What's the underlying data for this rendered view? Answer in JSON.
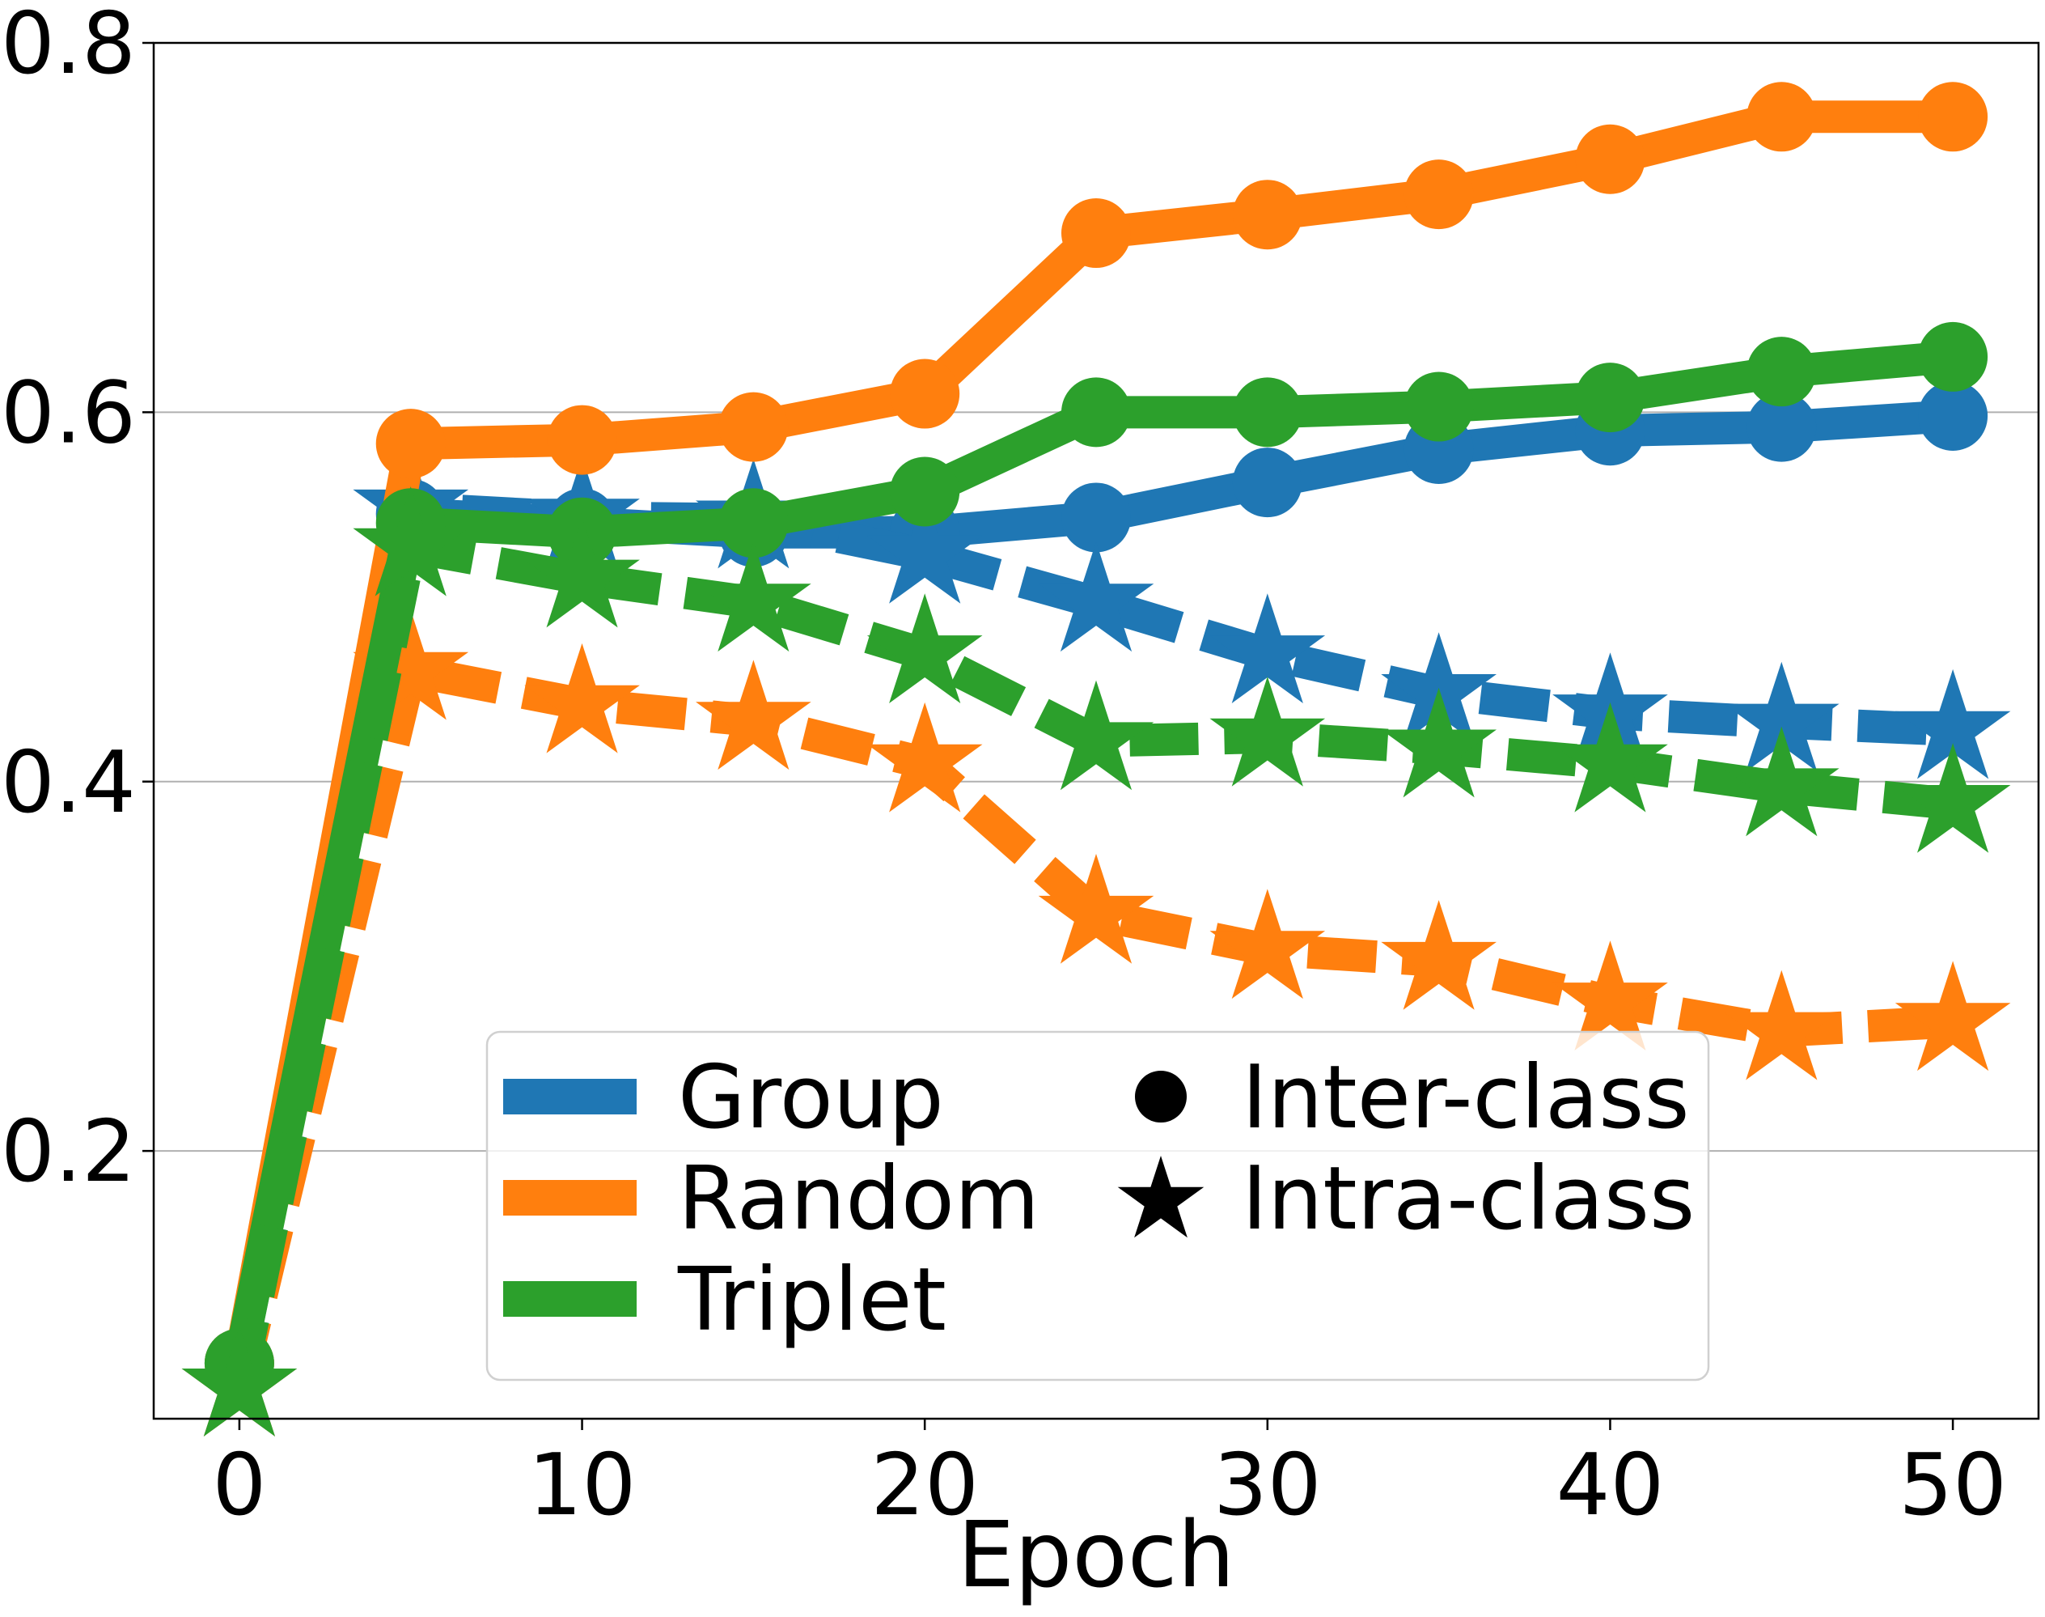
{
  "chart_data": {
    "type": "line",
    "title": "",
    "xlabel": "Epoch",
    "ylabel": "",
    "xlim": [
      -2.5,
      52.5
    ],
    "ylim": [
      0.055,
      0.8
    ],
    "xticks": [
      0,
      10,
      20,
      30,
      40,
      50
    ],
    "xtick_labels": [
      "0",
      "10",
      "20",
      "30",
      "40",
      "50"
    ],
    "yticks": [
      0.2,
      0.4,
      0.6,
      0.8
    ],
    "ytick_labels": [
      "0.2",
      "0.4",
      "0.6",
      "0.8"
    ],
    "grid": "horizontal",
    "legend_position": "lower-right",
    "x": [
      0,
      5,
      10,
      15,
      20,
      25,
      30,
      35,
      40,
      45,
      50
    ],
    "series": [
      {
        "name": "Group",
        "metric": "Inter-class",
        "color": "#1f77b4",
        "line_style": "solid",
        "marker": "circle",
        "values": [
          0.085,
          0.545,
          0.54,
          0.535,
          0.535,
          0.543,
          0.562,
          0.58,
          0.59,
          0.592,
          0.598
        ]
      },
      {
        "name": "Group",
        "metric": "Intra-class",
        "color": "#1f77b4",
        "line_style": "dashed",
        "marker": "star",
        "values": [
          0.072,
          0.548,
          0.543,
          0.542,
          0.523,
          0.497,
          0.469,
          0.448,
          0.437,
          0.432,
          0.428
        ]
      },
      {
        "name": "Random",
        "metric": "Inter-class",
        "color": "#ff7f0e",
        "line_style": "solid",
        "marker": "circle",
        "values": [
          0.085,
          0.583,
          0.585,
          0.592,
          0.61,
          0.697,
          0.707,
          0.718,
          0.737,
          0.76,
          0.76
        ]
      },
      {
        "name": "Random",
        "metric": "Intra-class",
        "color": "#ff7f0e",
        "line_style": "dashed",
        "marker": "star",
        "values": [
          0.072,
          0.46,
          0.442,
          0.433,
          0.41,
          0.328,
          0.309,
          0.303,
          0.281,
          0.265,
          0.27
        ]
      },
      {
        "name": "Triplet",
        "metric": "Inter-class",
        "color": "#2ca02c",
        "line_style": "solid",
        "marker": "circle",
        "values": [
          0.085,
          0.54,
          0.535,
          0.54,
          0.557,
          0.6,
          0.6,
          0.603,
          0.608,
          0.622,
          0.63
        ]
      },
      {
        "name": "Triplet",
        "metric": "Intra-class",
        "color": "#2ca02c",
        "line_style": "dashed",
        "marker": "star",
        "values": [
          0.072,
          0.527,
          0.51,
          0.497,
          0.469,
          0.422,
          0.424,
          0.418,
          0.41,
          0.397,
          0.388
        ]
      }
    ],
    "legend": {
      "methods": [
        {
          "label": "Group",
          "color": "#1f77b4"
        },
        {
          "label": "Random",
          "color": "#ff7f0e"
        },
        {
          "label": "Triplet",
          "color": "#2ca02c"
        }
      ],
      "metrics": [
        {
          "label": "Inter-class",
          "marker": "circle"
        },
        {
          "label": "Intra-class",
          "marker": "star"
        }
      ]
    }
  }
}
